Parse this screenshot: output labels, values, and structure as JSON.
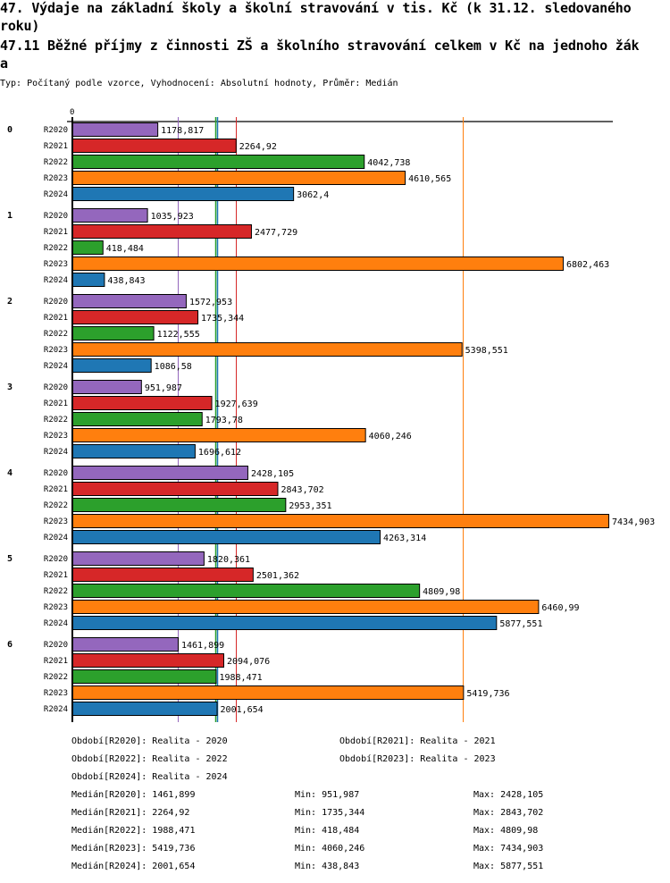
{
  "header": {
    "title_line1": "47. Výdaje na základní školy a školní stravování v tis. Kč (k 31.12. sledovaného",
    "title_line1b": "roku)",
    "title_line2": "47.11 Běžné příjmy z činnosti ZŠ a školního stravování celkem v Kč na jednoho žák",
    "title_line2b": "a",
    "subtitle": "Typ: Počítaný podle vzorce, Vyhodnocení: Absolutní hodnoty, Průměr: Medián"
  },
  "chart_data": {
    "type": "bar",
    "orientation": "horizontal",
    "title": "47.11 Běžné příjmy z činnosti ZŠ a školního stravování celkem v Kč na jednoho žáka",
    "xlabel": "",
    "ylabel": "",
    "axis_zero_label": "0",
    "xlim": [
      0,
      7434.903
    ],
    "grid": false,
    "categories": [
      "0",
      "1",
      "2",
      "3",
      "4",
      "5",
      "6"
    ],
    "series": [
      {
        "name": "R2020",
        "color": "#9467bd",
        "values": [
          1178.817,
          1035.923,
          1572.953,
          951.987,
          2428.105,
          1820.361,
          1461.899
        ],
        "labels": [
          "1178,817",
          "1035,923",
          "1572,953",
          "951,987",
          "2428,105",
          "1820,361",
          "1461,899"
        ]
      },
      {
        "name": "R2021",
        "color": "#d62728",
        "values": [
          2264.92,
          2477.729,
          1735.344,
          1927.639,
          2843.702,
          2501.362,
          2094.076
        ],
        "labels": [
          "2264,92",
          "2477,729",
          "1735,344",
          "1927,639",
          "2843,702",
          "2501,362",
          "2094,076"
        ]
      },
      {
        "name": "R2022",
        "color": "#2ca02c",
        "values": [
          4042.738,
          418.484,
          1122.555,
          1793.78,
          2953.351,
          4809.98,
          1988.471
        ],
        "labels": [
          "4042,738",
          "418,484",
          "1122,555",
          "1793,78",
          "2953,351",
          "4809,98",
          "1988,471"
        ]
      },
      {
        "name": "R2023",
        "color": "#ff7f0e",
        "values": [
          4610.565,
          6802.463,
          5398.551,
          4060.246,
          7434.903,
          6460.99,
          5419.736
        ],
        "labels": [
          "4610,565",
          "6802,463",
          "5398,551",
          "4060,246",
          "7434,903",
          "6460,99",
          "5419,736"
        ]
      },
      {
        "name": "R2024",
        "color": "#1f77b4",
        "values": [
          3062.4,
          438.843,
          1086.58,
          1696.612,
          4263.314,
          5877.551,
          2001.654
        ],
        "labels": [
          "3062,4",
          "438,843",
          "1086,58",
          "1696,612",
          "4263,314",
          "5877,551",
          "2001,654"
        ]
      }
    ],
    "median_lines": [
      {
        "series": "R2020",
        "value": 1461.899,
        "color": "#9467bd"
      },
      {
        "series": "R2021",
        "value": 2264.92,
        "color": "#d62728"
      },
      {
        "series": "R2022",
        "value": 1988.471,
        "color": "#2ca02c"
      },
      {
        "series": "R2023",
        "value": 5419.736,
        "color": "#ff7f0e"
      },
      {
        "series": "R2024",
        "value": 2001.654,
        "color": "#1f77b4"
      }
    ]
  },
  "legend": {
    "periods": [
      "Období[R2020]: Realita - 2020",
      "Období[R2021]: Realita - 2021",
      "Období[R2022]: Realita - 2022",
      "Období[R2023]: Realita - 2023",
      "Období[R2024]: Realita - 2024"
    ],
    "stats": [
      {
        "median": "Medián[R2020]: 1461,899",
        "min": "Min: 951,987",
        "max": "Max: 2428,105"
      },
      {
        "median": "Medián[R2021]: 2264,92",
        "min": "Min: 1735,344",
        "max": "Max: 2843,702"
      },
      {
        "median": "Medián[R2022]: 1988,471",
        "min": "Min: 418,484",
        "max": "Max: 4809,98"
      },
      {
        "median": "Medián[R2023]: 5419,736",
        "min": "Min: 4060,246",
        "max": "Max: 7434,903"
      },
      {
        "median": "Medián[R2024]: 2001,654",
        "min": "Min: 438,843",
        "max": "Max: 5877,551"
      }
    ]
  }
}
